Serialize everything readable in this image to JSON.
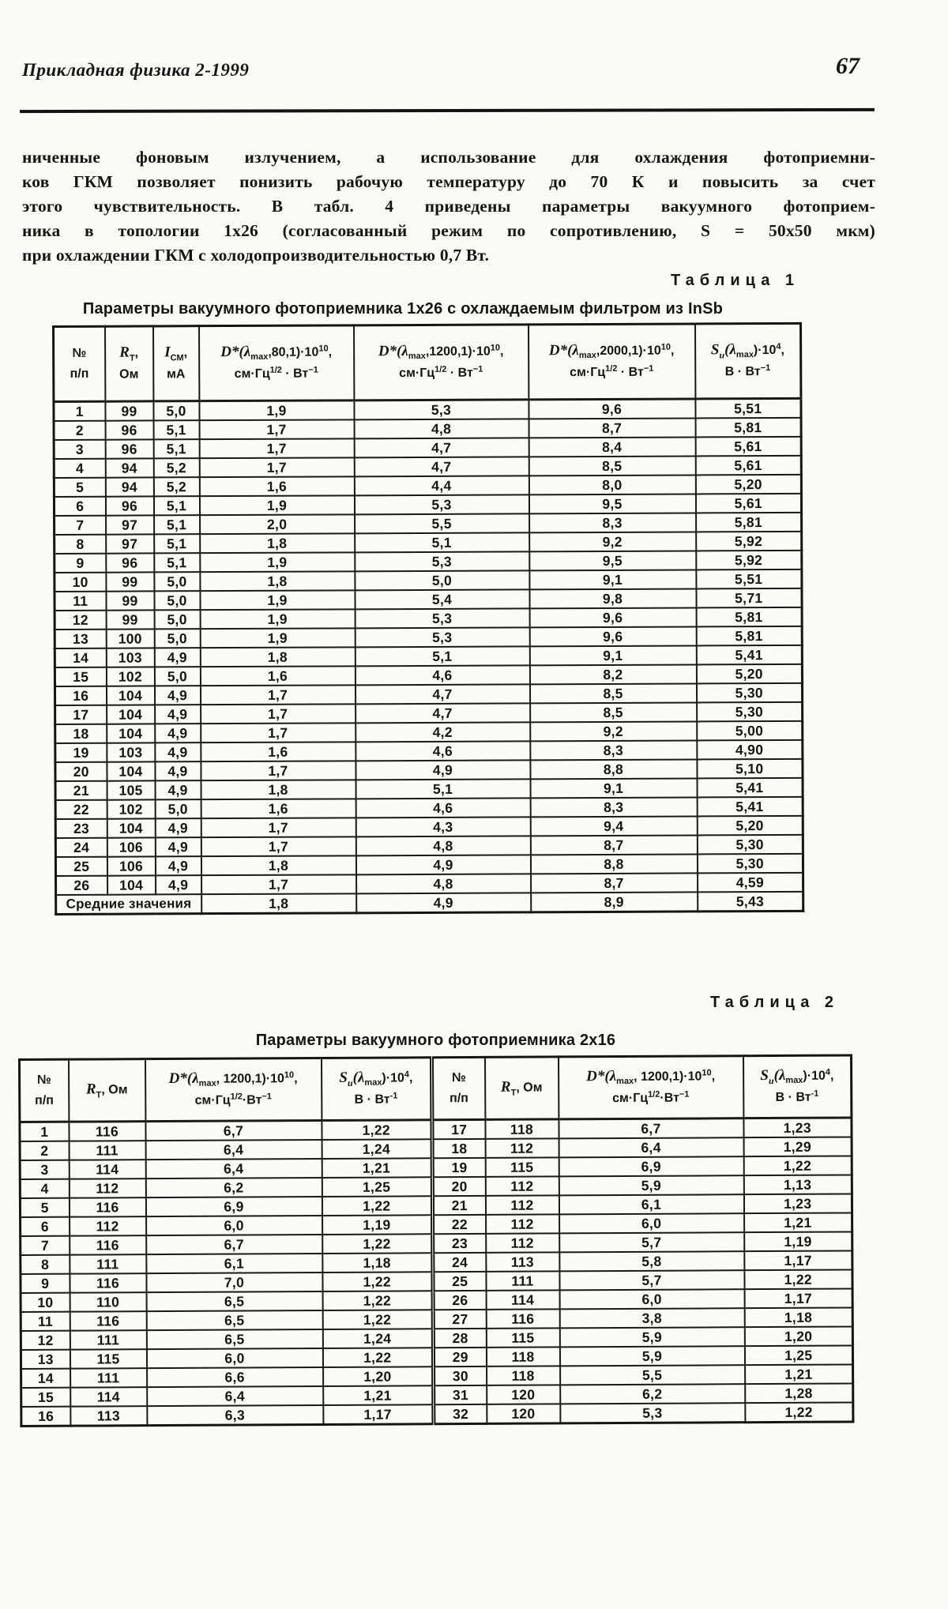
{
  "colors": {
    "ink": "#141414",
    "paper": "#fbfaf6"
  },
  "header": {
    "journal": "Прикладная физика 2-1999",
    "page_number": "67"
  },
  "intro": {
    "lines": [
      "ниченные фоновым излучением, а использование для охлаждения фотоприемни-",
      "ков ГКМ позволяет понизить рабочую температуру до 70 К и повысить за счет",
      "этого чувствительность. В табл. 4 приведены параметры вакуумного фотоприем-",
      "ника в топологии 1х26 (согласованный режим по сопротивлению, S = 50х50 мкм)",
      "при охлаждении ГКМ с холодопроизводительностью 0,7 Вт."
    ]
  },
  "table1": {
    "label": "Таблица 1",
    "title": "Параметры вакуумного фотоприемника 1х26 с охлаждаемым фильтром из InSb",
    "columns": [
      {
        "lines": [
          [
            {
              "t": "№",
              "s": ""
            }
          ],
          [
            {
              "t": "п/п",
              "s": ""
            }
          ]
        ]
      },
      {
        "lines": [
          [
            {
              "t": "R",
              "s": "i"
            },
            {
              "t": "Т",
              "s": "sub"
            },
            {
              "t": ",",
              "s": ""
            }
          ],
          [
            {
              "t": "Ом",
              "s": ""
            }
          ]
        ]
      },
      {
        "lines": [
          [
            {
              "t": "I",
              "s": "i"
            },
            {
              "t": "СМ",
              "s": "sub"
            },
            {
              "t": ",",
              "s": ""
            }
          ],
          [
            {
              "t": "мА",
              "s": ""
            }
          ]
        ]
      },
      {
        "lines": [
          [
            {
              "t": "D*",
              "s": "i"
            },
            {
              "t": "(λ",
              "s": "i"
            },
            {
              "t": "max",
              "s": "sub"
            },
            {
              "t": ",80,1)·10",
              "s": ""
            },
            {
              "t": "10",
              "s": "sup"
            },
            {
              "t": ",",
              "s": ""
            }
          ],
          [
            {
              "t": "см·Гц",
              "s": ""
            },
            {
              "t": "1/2",
              "s": "sup"
            },
            {
              "t": " · Вт",
              "s": ""
            },
            {
              "t": "−1",
              "s": "sup"
            }
          ]
        ]
      },
      {
        "lines": [
          [
            {
              "t": "D*",
              "s": "i"
            },
            {
              "t": "(λ",
              "s": "i"
            },
            {
              "t": "max",
              "s": "sub"
            },
            {
              "t": ",1200,1)·10",
              "s": ""
            },
            {
              "t": "10",
              "s": "sup"
            },
            {
              "t": ",",
              "s": ""
            }
          ],
          [
            {
              "t": "см·Гц",
              "s": ""
            },
            {
              "t": "1/2",
              "s": "sup"
            },
            {
              "t": " · Вт",
              "s": ""
            },
            {
              "t": "−1",
              "s": "sup"
            }
          ]
        ]
      },
      {
        "lines": [
          [
            {
              "t": "D*",
              "s": "i"
            },
            {
              "t": "(λ",
              "s": "i"
            },
            {
              "t": "max",
              "s": "sub"
            },
            {
              "t": ",2000,1)·10",
              "s": ""
            },
            {
              "t": "10",
              "s": "sup"
            },
            {
              "t": ",",
              "s": ""
            }
          ],
          [
            {
              "t": "см·Гц",
              "s": ""
            },
            {
              "t": "1/2",
              "s": "sup"
            },
            {
              "t": " · Вт",
              "s": ""
            },
            {
              "t": "−1",
              "s": "sup"
            }
          ]
        ]
      },
      {
        "lines": [
          [
            {
              "t": "S",
              "s": "i"
            },
            {
              "t": "u",
              "s": "isub"
            },
            {
              "t": "(λ",
              "s": "i"
            },
            {
              "t": "max",
              "s": "sub"
            },
            {
              "t": ")·10",
              "s": ""
            },
            {
              "t": "4",
              "s": "sup"
            },
            {
              "t": ",",
              "s": ""
            }
          ],
          [
            {
              "t": "В · Вт",
              "s": ""
            },
            {
              "t": "−1",
              "s": "sup"
            }
          ]
        ]
      }
    ],
    "rows": [
      [
        "1",
        "99",
        "5,0",
        "1,9",
        "5,3",
        "9,6",
        "5,51"
      ],
      [
        "2",
        "96",
        "5,1",
        "1,7",
        "4,8",
        "8,7",
        "5,81"
      ],
      [
        "3",
        "96",
        "5,1",
        "1,7",
        "4,7",
        "8,4",
        "5,61"
      ],
      [
        "4",
        "94",
        "5,2",
        "1,7",
        "4,7",
        "8,5",
        "5,61"
      ],
      [
        "5",
        "94",
        "5,2",
        "1,6",
        "4,4",
        "8,0",
        "5,20"
      ],
      [
        "6",
        "96",
        "5,1",
        "1,9",
        "5,3",
        "9,5",
        "5,61"
      ],
      [
        "7",
        "97",
        "5,1",
        "2,0",
        "5,5",
        "8,3",
        "5,81"
      ],
      [
        "8",
        "97",
        "5,1",
        "1,8",
        "5,1",
        "9,2",
        "5,92"
      ],
      [
        "9",
        "96",
        "5,1",
        "1,9",
        "5,3",
        "9,5",
        "5,92"
      ],
      [
        "10",
        "99",
        "5,0",
        "1,8",
        "5,0",
        "9,1",
        "5,51"
      ],
      [
        "11",
        "99",
        "5,0",
        "1,9",
        "5,4",
        "9,8",
        "5,71"
      ],
      [
        "12",
        "99",
        "5,0",
        "1,9",
        "5,3",
        "9,6",
        "5,81"
      ],
      [
        "13",
        "100",
        "5,0",
        "1,9",
        "5,3",
        "9,6",
        "5,81"
      ],
      [
        "14",
        "103",
        "4,9",
        "1,8",
        "5,1",
        "9,1",
        "5,41"
      ],
      [
        "15",
        "102",
        "5,0",
        "1,6",
        "4,6",
        "8,2",
        "5,20"
      ],
      [
        "16",
        "104",
        "4,9",
        "1,7",
        "4,7",
        "8,5",
        "5,30"
      ],
      [
        "17",
        "104",
        "4,9",
        "1,7",
        "4,7",
        "8,5",
        "5,30"
      ],
      [
        "18",
        "104",
        "4,9",
        "1,7",
        "4,2",
        "9,2",
        "5,00"
      ],
      [
        "19",
        "103",
        "4,9",
        "1,6",
        "4,6",
        "8,3",
        "4,90"
      ],
      [
        "20",
        "104",
        "4,9",
        "1,7",
        "4,9",
        "8,8",
        "5,10"
      ],
      [
        "21",
        "105",
        "4,9",
        "1,8",
        "5,1",
        "9,1",
        "5,41"
      ],
      [
        "22",
        "102",
        "5,0",
        "1,6",
        "4,6",
        "8,3",
        "5,41"
      ],
      [
        "23",
        "104",
        "4,9",
        "1,7",
        "4,3",
        "9,4",
        "5,20"
      ],
      [
        "24",
        "106",
        "4,9",
        "1,7",
        "4,8",
        "8,7",
        "5,30"
      ],
      [
        "25",
        "106",
        "4,9",
        "1,8",
        "4,9",
        "8,8",
        "5,30"
      ],
      [
        "26",
        "104",
        "4,9",
        "1,7",
        "4,8",
        "8,7",
        "4,59"
      ]
    ],
    "footer": {
      "label": "Средние значения",
      "values": [
        "1,8",
        "4,9",
        "8,9",
        "5,43"
      ]
    }
  },
  "table2": {
    "label": "Таблица 2",
    "title": "Параметры вакуумного фотоприемника 2х16",
    "columns": [
      {
        "lines": [
          [
            {
              "t": "№",
              "s": ""
            }
          ],
          [
            {
              "t": "п/п",
              "s": ""
            }
          ]
        ]
      },
      {
        "lines": [
          [
            {
              "t": "R",
              "s": "i"
            },
            {
              "t": "Т",
              "s": "sub"
            },
            {
              "t": ", Ом",
              "s": ""
            }
          ]
        ]
      },
      {
        "lines": [
          [
            {
              "t": "D*",
              "s": "i"
            },
            {
              "t": "(λ",
              "s": "i"
            },
            {
              "t": "max",
              "s": "sub"
            },
            {
              "t": ", 1200,1)·10",
              "s": ""
            },
            {
              "t": "10",
              "s": "sup"
            },
            {
              "t": ",",
              "s": ""
            }
          ],
          [
            {
              "t": "см·Гц",
              "s": ""
            },
            {
              "t": "1/2",
              "s": "sup"
            },
            {
              "t": "·Вт",
              "s": ""
            },
            {
              "t": "−1",
              "s": "sup"
            }
          ]
        ]
      },
      {
        "lines": [
          [
            {
              "t": "S",
              "s": "i"
            },
            {
              "t": "u",
              "s": "isub"
            },
            {
              "t": "(λ",
              "s": "i"
            },
            {
              "t": "max",
              "s": "sub"
            },
            {
              "t": ")·10",
              "s": ""
            },
            {
              "t": "4",
              "s": "sup"
            },
            {
              "t": ",",
              "s": ""
            }
          ],
          [
            {
              "t": "В · Вт",
              "s": ""
            },
            {
              "t": "-1",
              "s": "sup"
            }
          ]
        ]
      }
    ],
    "rows_left": [
      [
        "1",
        "116",
        "6,7",
        "1,22"
      ],
      [
        "2",
        "111",
        "6,4",
        "1,24"
      ],
      [
        "3",
        "114",
        "6,4",
        "1,21"
      ],
      [
        "4",
        "112",
        "6,2",
        "1,25"
      ],
      [
        "5",
        "116",
        "6,9",
        "1,22"
      ],
      [
        "6",
        "112",
        "6,0",
        "1,19"
      ],
      [
        "7",
        "116",
        "6,7",
        "1,22"
      ],
      [
        "8",
        "111",
        "6,1",
        "1,18"
      ],
      [
        "9",
        "116",
        "7,0",
        "1,22"
      ],
      [
        "10",
        "110",
        "6,5",
        "1,22"
      ],
      [
        "11",
        "116",
        "6,5",
        "1,22"
      ],
      [
        "12",
        "111",
        "6,5",
        "1,24"
      ],
      [
        "13",
        "115",
        "6,0",
        "1,22"
      ],
      [
        "14",
        "111",
        "6,6",
        "1,20"
      ],
      [
        "15",
        "114",
        "6,4",
        "1,21"
      ],
      [
        "16",
        "113",
        "6,3",
        "1,17"
      ]
    ],
    "rows_right": [
      [
        "17",
        "118",
        "6,7",
        "1,23"
      ],
      [
        "18",
        "112",
        "6,4",
        "1,29"
      ],
      [
        "19",
        "115",
        "6,9",
        "1,22"
      ],
      [
        "20",
        "112",
        "5,9",
        "1,13"
      ],
      [
        "21",
        "112",
        "6,1",
        "1,23"
      ],
      [
        "22",
        "112",
        "6,0",
        "1,21"
      ],
      [
        "23",
        "112",
        "5,7",
        "1,19"
      ],
      [
        "24",
        "113",
        "5,8",
        "1,17"
      ],
      [
        "25",
        "111",
        "5,7",
        "1,22"
      ],
      [
        "26",
        "114",
        "6,0",
        "1,17"
      ],
      [
        "27",
        "116",
        "3,8",
        "1,18"
      ],
      [
        "28",
        "115",
        "5,9",
        "1,20"
      ],
      [
        "29",
        "118",
        "5,9",
        "1,25"
      ],
      [
        "30",
        "118",
        "5,5",
        "1,21"
      ],
      [
        "31",
        "120",
        "6,2",
        "1,28"
      ],
      [
        "32",
        "120",
        "5,3",
        "1,22"
      ]
    ]
  }
}
